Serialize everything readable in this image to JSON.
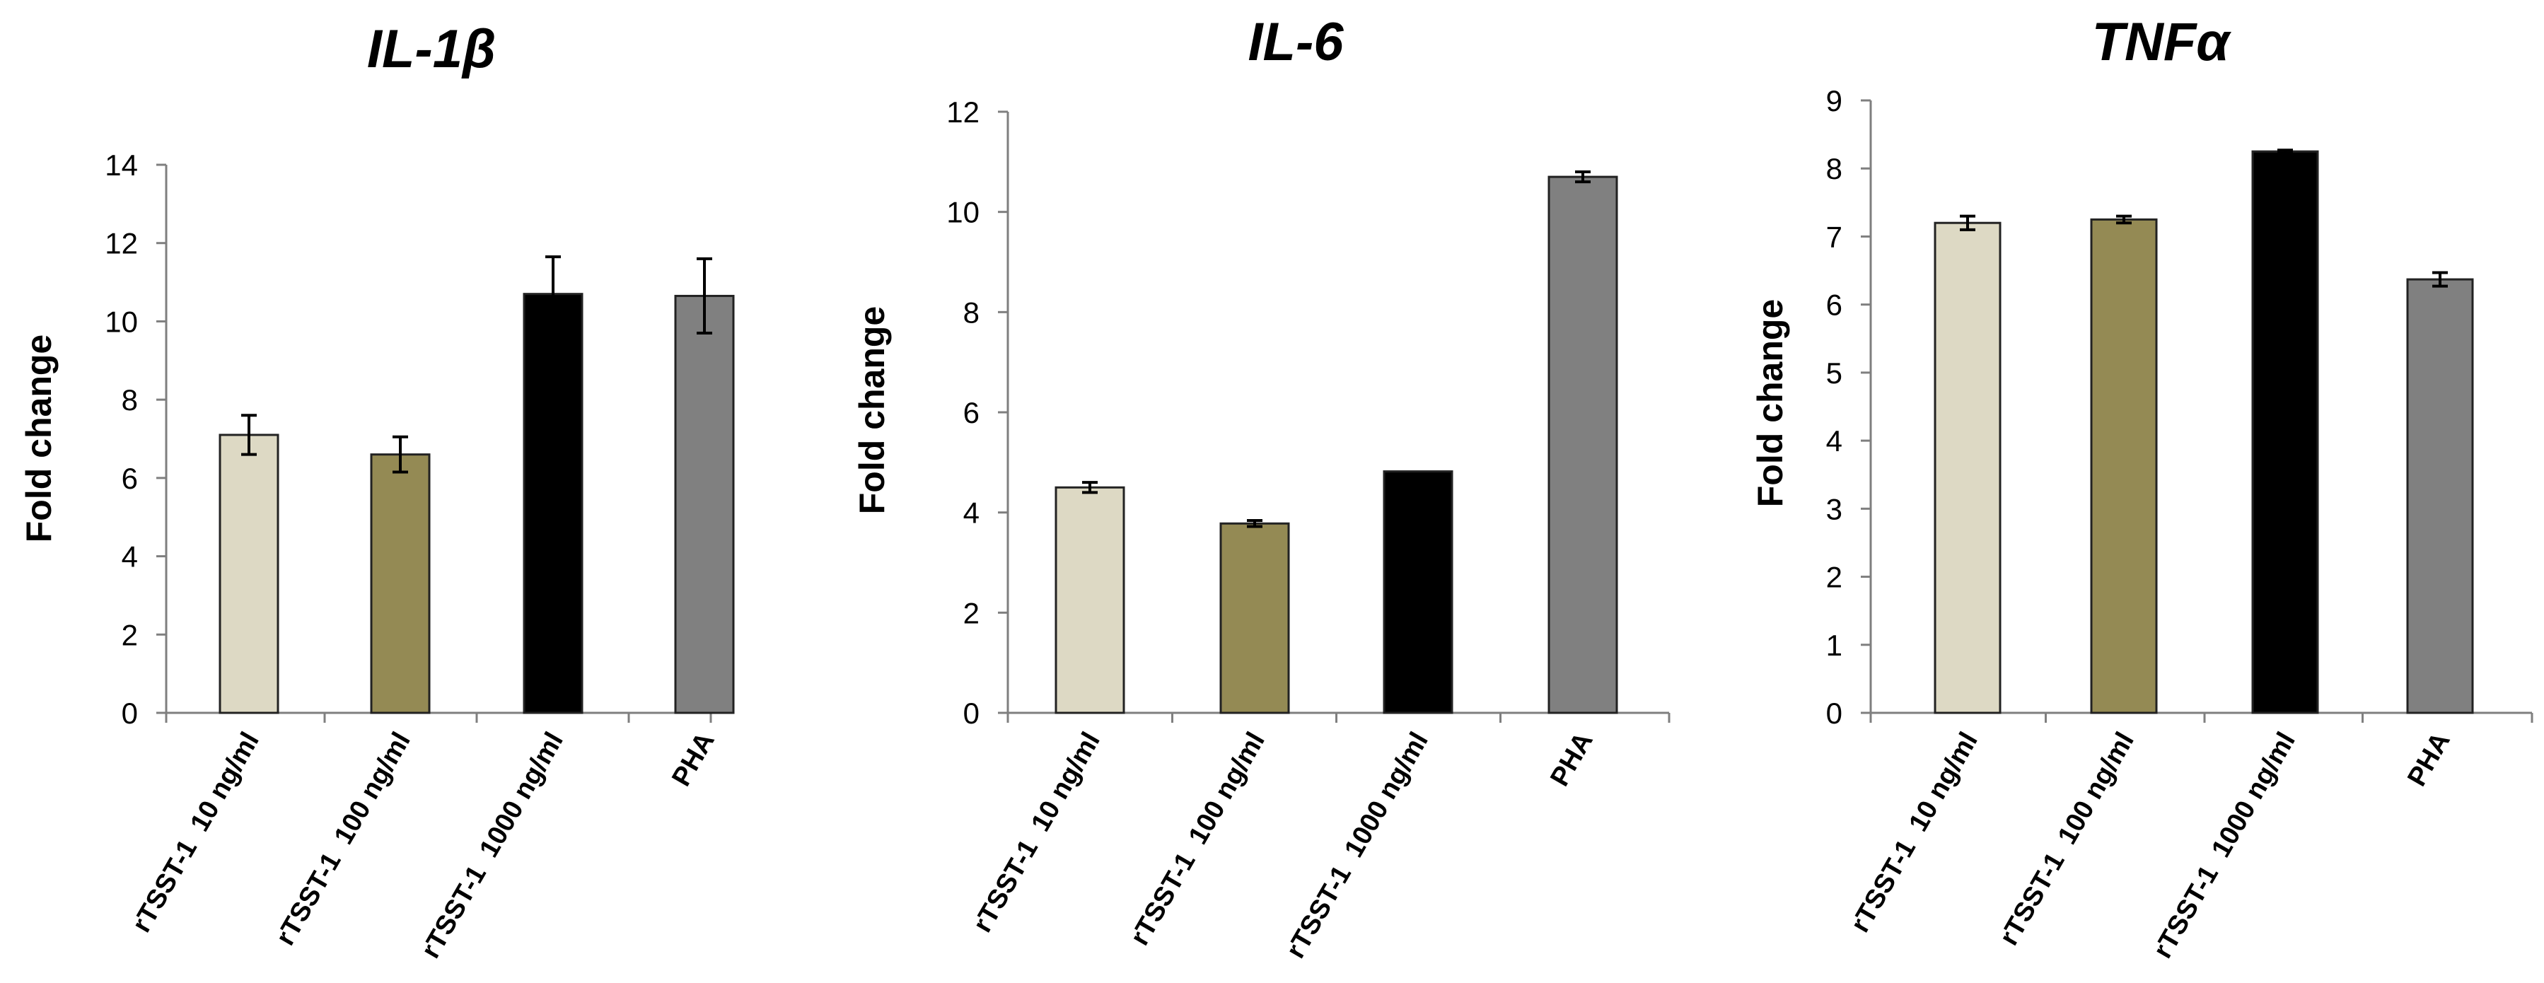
{
  "chart_data": [
    {
      "type": "bar",
      "title": "IL-1β",
      "ylabel": "Fold change",
      "xlabel": "",
      "ylim": [
        0,
        14
      ],
      "yticks": [
        0,
        2,
        4,
        6,
        8,
        10,
        12,
        14
      ],
      "categories": [
        "rTSST-1  10 ng/ml",
        "rTSST-1  100 ng/ml",
        "rTSST-1  1000 ng/ml",
        "PHA"
      ],
      "values": [
        7.1,
        6.6,
        10.7,
        10.65
      ],
      "errors": [
        0.5,
        0.45,
        0.95,
        0.95
      ],
      "colors": [
        "#ddd9c4",
        "#948a54",
        "#000000",
        "#808080"
      ]
    },
    {
      "type": "bar",
      "title": "IL-6",
      "ylabel": "Fold change",
      "xlabel": "",
      "ylim": [
        0,
        12
      ],
      "yticks": [
        0,
        2,
        4,
        6,
        8,
        10,
        12
      ],
      "categories": [
        "rTSST-1  10 ng/ml",
        "rTSST-1  100 ng/ml",
        "rTSST-1  1000 ng/ml",
        "PHA"
      ],
      "values": [
        4.5,
        3.78,
        4.82,
        10.7
      ],
      "errors": [
        0.1,
        0.06,
        0.0,
        0.1
      ],
      "colors": [
        "#ddd9c4",
        "#948a54",
        "#000000",
        "#808080"
      ]
    },
    {
      "type": "bar",
      "title": "TNFα",
      "ylabel": "Fold change",
      "xlabel": "",
      "ylim": [
        0,
        9
      ],
      "yticks": [
        0,
        1,
        2,
        3,
        4,
        5,
        6,
        7,
        8,
        9
      ],
      "categories": [
        "rTSST-1  10 ng/ml",
        "rTSST-1  100 ng/ml",
        "rTSST-1  1000 ng/ml",
        "PHA"
      ],
      "values": [
        7.2,
        7.25,
        8.25,
        6.37
      ],
      "errors": [
        0.1,
        0.05,
        0.02,
        0.1
      ],
      "colors": [
        "#ddd9c4",
        "#948a54",
        "#000000",
        "#808080"
      ]
    }
  ]
}
